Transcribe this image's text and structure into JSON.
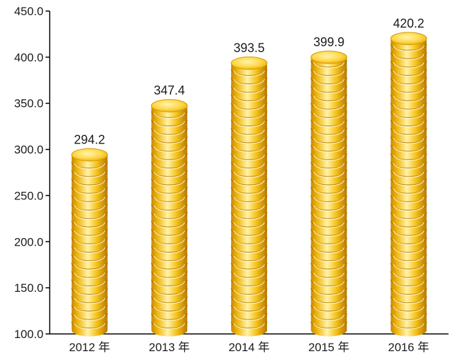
{
  "chart_data": {
    "type": "bar",
    "categories": [
      "2012 年",
      "2013 年",
      "2014 年",
      "2015 年",
      "2016 年"
    ],
    "values": [
      294.2,
      347.4,
      393.5,
      399.9,
      420.2
    ],
    "data_labels": [
      "294.2",
      "347.4",
      "393.5",
      "399.9",
      "420.2"
    ],
    "ylim": [
      100.0,
      450.0
    ],
    "yticks": [
      100.0,
      150.0,
      200.0,
      250.0,
      300.0,
      350.0,
      400.0,
      450.0
    ],
    "ytick_labels": [
      "100.0",
      "150.0",
      "200.0",
      "250.0",
      "300.0",
      "350.0",
      "400.0",
      "450.0"
    ],
    "grid": false,
    "title": "",
    "xlabel": "",
    "ylabel": "",
    "bar_style": "stacked gold coins",
    "colors": {
      "coin_dark": "#c98a00",
      "coin_mid": "#f6c21a",
      "coin_light": "#fff2a8",
      "coin_top": "#ffd84a",
      "axis": "#000000"
    }
  }
}
